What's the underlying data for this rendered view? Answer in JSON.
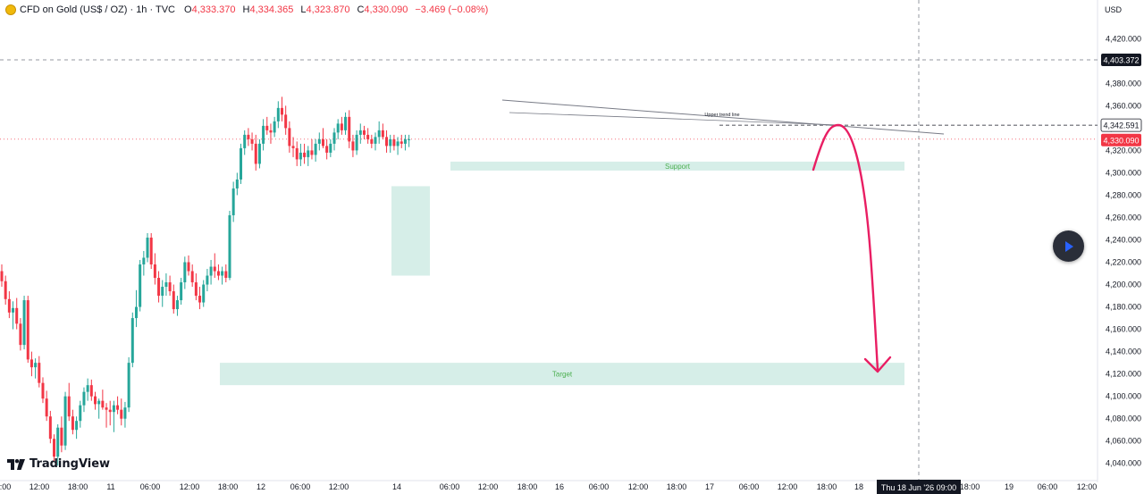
{
  "legend": {
    "title": "CFD on Gold (US$ / OZ) · 1h · TVC",
    "open_label": "O",
    "open": "4,333.370",
    "high_label": "H",
    "high": "4,334.365",
    "low_label": "L",
    "low": "4,323.870",
    "close_label": "C",
    "close": "4,330.090",
    "change": "−3.469 (−0.08%)"
  },
  "branding": {
    "logo_text": "TradingView"
  },
  "colors": {
    "up": "#26a69a",
    "down": "#f23645",
    "zone_fill": "#d6eee8",
    "zone_text": "#4caf50",
    "arrow": "#e91e63",
    "crosshair_label": "#131722",
    "last_price_label": "#f23645"
  },
  "chart_data": {
    "type": "candlestick",
    "title": "CFD on Gold (US$ / OZ) · 1h · TVC",
    "currency": "USD",
    "y_range": [
      4035,
      4445
    ],
    "y_ticks": [
      4040,
      4060,
      4080,
      4100,
      4120,
      4140,
      4160,
      4180,
      4200,
      4220,
      4240,
      4260,
      4280,
      4300,
      4320,
      4340,
      4360,
      4380,
      4420
    ],
    "y_tick_labels": [
      "4,040.000",
      "4,060.000",
      "4,080.000",
      "4,100.000",
      "4,120.000",
      "4,140.000",
      "4,160.000",
      "4,180.000",
      "4,200.000",
      "4,220.000",
      "4,240.000",
      "4,260.000",
      "4,280.000",
      "4,300.000",
      "4,320.000",
      "4,340.000",
      "4,360.000",
      "4,380.000",
      "4,420.000"
    ],
    "x_labels": [
      "12:00",
      "18:00",
      "11",
      "06:00",
      "12:00",
      "18:00",
      "12",
      "06:00",
      "12:00",
      "14",
      "06:00",
      "12:00",
      "18:00",
      "16",
      "06:00",
      "12:00",
      "18:00",
      "17",
      "06:00",
      "12:00",
      "18:00",
      "18",
      "Thu 18 Jun '26  09:00",
      "18:00",
      "19",
      "06:00",
      "12:00"
    ],
    "price_labels": {
      "crosshair": "4,403.372",
      "level": "4,342.591",
      "last": "4,330.090"
    },
    "candles": [
      [
        4212,
        4218,
        4198,
        4203
      ],
      [
        4203,
        4208,
        4182,
        4187
      ],
      [
        4187,
        4194,
        4170,
        4175
      ],
      [
        4175,
        4185,
        4160,
        4179
      ],
      [
        4179,
        4188,
        4160,
        4165
      ],
      [
        4165,
        4170,
        4141,
        4146
      ],
      [
        4146,
        4190,
        4142,
        4186
      ],
      [
        4186,
        4190,
        4130,
        4133
      ],
      [
        4133,
        4140,
        4118,
        4126
      ],
      [
        4126,
        4134,
        4116,
        4130
      ],
      [
        4130,
        4136,
        4108,
        4112
      ],
      [
        4112,
        4117,
        4094,
        4098
      ],
      [
        4098,
        4105,
        4078,
        4082
      ],
      [
        4082,
        4087,
        4058,
        4062
      ],
      [
        4062,
        4066,
        4042,
        4046
      ],
      [
        4046,
        4075,
        4038,
        4072
      ],
      [
        4072,
        4082,
        4050,
        4056
      ],
      [
        4056,
        4104,
        4052,
        4100
      ],
      [
        4100,
        4112,
        4078,
        4082
      ],
      [
        4082,
        4088,
        4066,
        4070
      ],
      [
        4070,
        4082,
        4062,
        4078
      ],
      [
        4078,
        4096,
        4072,
        4092
      ],
      [
        4092,
        4108,
        4086,
        4104
      ],
      [
        4104,
        4116,
        4096,
        4110
      ],
      [
        4110,
        4115,
        4096,
        4100
      ],
      [
        4100,
        4104,
        4088,
        4093
      ],
      [
        4093,
        4098,
        4080,
        4096
      ],
      [
        4096,
        4106,
        4088,
        4090
      ],
      [
        4090,
        4094,
        4072,
        4088
      ],
      [
        4088,
        4096,
        4074,
        4086
      ],
      [
        4086,
        4096,
        4068,
        4092
      ],
      [
        4092,
        4100,
        4084,
        4088
      ],
      [
        4088,
        4098,
        4074,
        4080
      ],
      [
        4080,
        4095,
        4072,
        4090
      ],
      [
        4090,
        4135,
        4086,
        4130
      ],
      [
        4130,
        4175,
        4126,
        4170
      ],
      [
        4170,
        4195,
        4162,
        4180
      ],
      [
        4180,
        4222,
        4176,
        4218
      ],
      [
        4218,
        4230,
        4208,
        4224
      ],
      [
        4224,
        4246,
        4220,
        4242
      ],
      [
        4242,
        4246,
        4214,
        4218
      ],
      [
        4218,
        4228,
        4200,
        4206
      ],
      [
        4206,
        4212,
        4184,
        4190
      ],
      [
        4190,
        4204,
        4180,
        4198
      ],
      [
        4198,
        4210,
        4190,
        4202
      ],
      [
        4202,
        4208,
        4190,
        4194
      ],
      [
        4194,
        4200,
        4174,
        4178
      ],
      [
        4178,
        4190,
        4172,
        4186
      ],
      [
        4186,
        4206,
        4182,
        4202
      ],
      [
        4202,
        4225,
        4196,
        4220
      ],
      [
        4220,
        4226,
        4208,
        4212
      ],
      [
        4212,
        4218,
        4198,
        4202
      ],
      [
        4202,
        4210,
        4186,
        4190
      ],
      [
        4190,
        4198,
        4178,
        4184
      ],
      [
        4184,
        4204,
        4180,
        4200
      ],
      [
        4200,
        4214,
        4194,
        4208
      ],
      [
        4208,
        4222,
        4200,
        4216
      ],
      [
        4216,
        4228,
        4206,
        4212
      ],
      [
        4212,
        4218,
        4204,
        4208
      ],
      [
        4208,
        4216,
        4200,
        4212
      ],
      [
        4212,
        4218,
        4202,
        4206
      ],
      [
        4206,
        4266,
        4204,
        4262
      ],
      [
        4262,
        4292,
        4256,
        4286
      ],
      [
        4286,
        4300,
        4280,
        4294
      ],
      [
        4294,
        4326,
        4290,
        4322
      ],
      [
        4322,
        4338,
        4316,
        4334
      ],
      [
        4334,
        4340,
        4324,
        4330
      ],
      [
        4330,
        4336,
        4320,
        4326
      ],
      [
        4326,
        4334,
        4302,
        4308
      ],
      [
        4308,
        4330,
        4304,
        4326
      ],
      [
        4326,
        4348,
        4320,
        4342
      ],
      [
        4342,
        4350,
        4334,
        4338
      ],
      [
        4338,
        4344,
        4326,
        4336
      ],
      [
        4336,
        4350,
        4332,
        4346
      ],
      [
        4346,
        4364,
        4340,
        4358
      ],
      [
        4358,
        4368,
        4346,
        4352
      ],
      [
        4352,
        4360,
        4334,
        4340
      ],
      [
        4340,
        4346,
        4318,
        4324
      ],
      [
        4324,
        4332,
        4314,
        4322
      ],
      [
        4322,
        4328,
        4306,
        4312
      ],
      [
        4312,
        4326,
        4306,
        4318
      ],
      [
        4318,
        4326,
        4308,
        4314
      ],
      [
        4314,
        4324,
        4306,
        4320
      ],
      [
        4320,
        4330,
        4312,
        4316
      ],
      [
        4316,
        4330,
        4310,
        4326
      ],
      [
        4326,
        4336,
        4320,
        4330
      ],
      [
        4330,
        4340,
        4322,
        4324
      ],
      [
        4324,
        4330,
        4312,
        4318
      ],
      [
        4318,
        4330,
        4314,
        4326
      ],
      [
        4326,
        4340,
        4320,
        4336
      ],
      [
        4336,
        4348,
        4330,
        4344
      ],
      [
        4344,
        4350,
        4334,
        4338
      ],
      [
        4338,
        4354,
        4334,
        4350
      ],
      [
        4350,
        4356,
        4322,
        4328
      ],
      [
        4328,
        4334,
        4314,
        4320
      ],
      [
        4320,
        4338,
        4316,
        4334
      ],
      [
        4334,
        4344,
        4326,
        4338
      ],
      [
        4338,
        4342,
        4330,
        4334
      ],
      [
        4334,
        4340,
        4326,
        4330
      ],
      [
        4330,
        4334,
        4322,
        4326
      ],
      [
        4326,
        4336,
        4320,
        4332
      ],
      [
        4332,
        4346,
        4326,
        4338
      ],
      [
        4338,
        4344,
        4330,
        4332
      ],
      [
        4332,
        4338,
        4318,
        4324
      ],
      [
        4324,
        4334,
        4318,
        4330
      ],
      [
        4330,
        4334,
        4320,
        4324
      ],
      [
        4324,
        4332,
        4316,
        4328
      ],
      [
        4328,
        4334,
        4322,
        4326
      ],
      [
        4326,
        4334,
        4320,
        4330
      ],
      [
        4330,
        4334,
        4323,
        4330
      ]
    ],
    "zones": [
      {
        "label": "",
        "from": 4208,
        "to": 4288
      },
      {
        "label": "Support",
        "from": 4302,
        "to": 4310
      },
      {
        "label": "Target",
        "from": 4110,
        "to": 4130
      }
    ],
    "annotations": [
      {
        "type": "trend_line",
        "label": "Upper trend line"
      },
      {
        "type": "horizontal_ray",
        "value": 4342.591
      },
      {
        "type": "forecast_arrow",
        "from": 4315,
        "peak": 4343,
        "to": 4125
      }
    ]
  }
}
